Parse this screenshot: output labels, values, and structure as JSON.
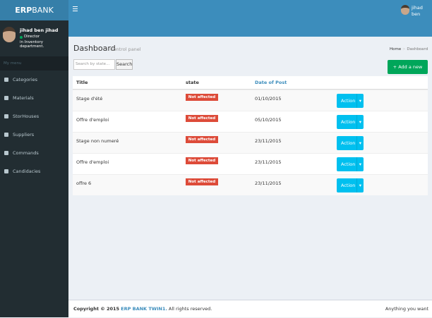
{
  "logo": {
    "bold": "ERP",
    "light": "BANK"
  },
  "top_user": [
    "jihad",
    "ben"
  ],
  "sidebar": {
    "user_name": "jihad ben jihad",
    "role": "Director",
    "department": "in Inventory department.",
    "menu_header": "My menu",
    "items": [
      "Categories",
      "Materials",
      "StorHouses",
      "Suppliers",
      "Commands",
      "Candidacies"
    ]
  },
  "content": {
    "title": "Dashboard",
    "subtitle": "Control panel",
    "breadcrumb": [
      "Home",
      "Dashboard"
    ],
    "search_placeholder": "Search by state...",
    "search_button": "Search",
    "add_button": "Add a new Offre"
  },
  "table": {
    "headers": [
      "Title",
      "state",
      "Date of Post"
    ],
    "rows": [
      [
        "Stage d'été",
        "Not affected",
        "01/10/2015",
        "Action"
      ],
      [
        "Offre d'emploi",
        "Not affected",
        "05/10/2015",
        "Action"
      ],
      [
        "Stage non numeré",
        "Not affected",
        "23/11/2015",
        "Action"
      ],
      [
        "Offre d'emploi",
        "Not affected",
        "23/11/2015",
        "Action"
      ],
      [
        "offre 6",
        "Not affected",
        "23/11/2015",
        "Action"
      ]
    ]
  },
  "footer": {
    "copyright": "Copyright © 2015",
    "company": "ERP BANK TWIN1.",
    "rights": "All rights reserved.",
    "right_text": "Anything you want"
  }
}
